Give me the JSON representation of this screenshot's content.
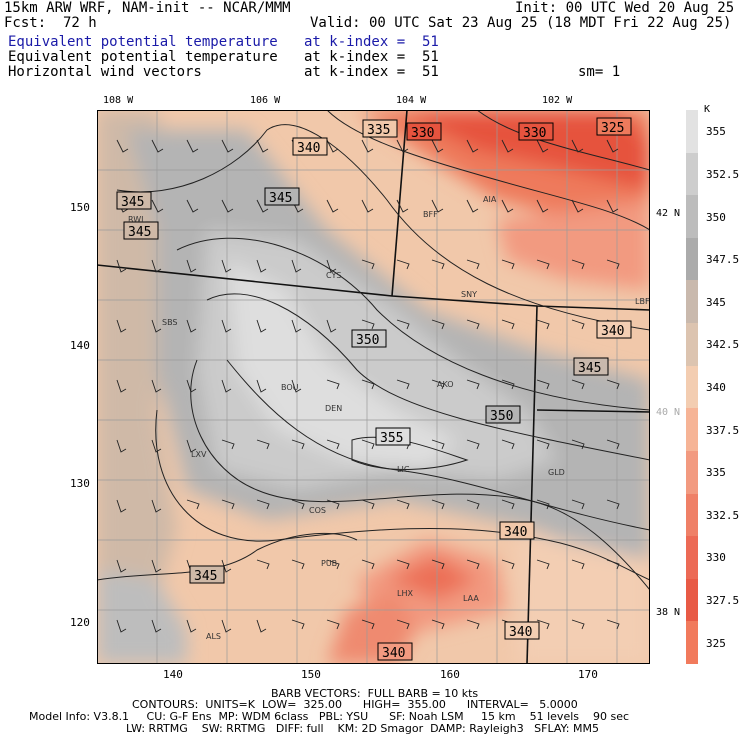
{
  "header": {
    "model": "15km ARW WRF, NAM-init -- NCAR/MMM",
    "init": "Init: 00 UTC Wed 20 Aug 25",
    "fcst_label": "Fcst:",
    "fcst_value": "72 h",
    "valid": "Valid: 00 UTC Sat 23 Aug 25 (18 MDT Fri 22 Aug 25)",
    "fields": [
      {
        "name": "Equivalent potential temperature",
        "level": "at k-index =  51",
        "color": "#1a1aa8"
      },
      {
        "name": "Equivalent potential temperature",
        "level": "at k-index =  51",
        "color": "#000000"
      },
      {
        "name": "Horizontal wind vectors",
        "level": "at k-index =  51",
        "color": "#000000"
      }
    ],
    "smoothing": "sm= 1"
  },
  "map": {
    "top_lon_labels": [
      "108 W",
      "106 W",
      "104 W",
      "102 W"
    ],
    "left_y_labels": [
      "150",
      "140",
      "130",
      "120"
    ],
    "bottom_x_labels": [
      "140",
      "150",
      "160",
      "170"
    ],
    "right_lat_labels": [
      "42 N",
      "40 N",
      "38 N"
    ],
    "contour_labels": [
      "335",
      "330",
      "330",
      "325",
      "340",
      "345",
      "345",
      "345",
      "350",
      "340",
      "345",
      "350",
      "355",
      "340",
      "345",
      "340",
      "340"
    ],
    "stations": [
      "RWL",
      "BFF",
      "AIA",
      "CYS",
      "SNY",
      "LBF",
      "SBS",
      "BOU",
      "AKO",
      "DEN",
      "LIC",
      "LXV",
      "GLD",
      "COS",
      "PUB",
      "LHX",
      "LAA",
      "ALS"
    ]
  },
  "colorbar": {
    "unit": "K",
    "labels": [
      "355",
      "352.5",
      "350",
      "347.5",
      "345",
      "342.5",
      "340",
      "337.5",
      "335",
      "332.5",
      "330",
      "327.5",
      "325"
    ],
    "colors": [
      "#e2e2e2",
      "#cdcdcd",
      "#bcbcbc",
      "#ababab",
      "#c9b9ad",
      "#dcc4b0",
      "#f3cdb1",
      "#f6b496",
      "#f29a80",
      "#ef8067",
      "#ec6a55",
      "#e85a45",
      "#f17a5c"
    ]
  },
  "footer": {
    "barb_line": "BARB VECTORS:  FULL BARB = 10 kts",
    "contours_line": "CONTOURS:  UNITS=K  LOW=  325.00      HIGH=  355.00      INTERVAL=   5.0000",
    "model_info": "Model Info: V3.8.1     CU: G-F Ens  MP: WDM 6class   PBL: YSU      SF: Noah LSM     15 km    51 levels    90 sec",
    "model_info2": "LW: RRTMG    SW: RRTMG   DIFF: full    KM: 2D Smagor  DAMP: Rayleigh3   SFLAY: MM5"
  }
}
